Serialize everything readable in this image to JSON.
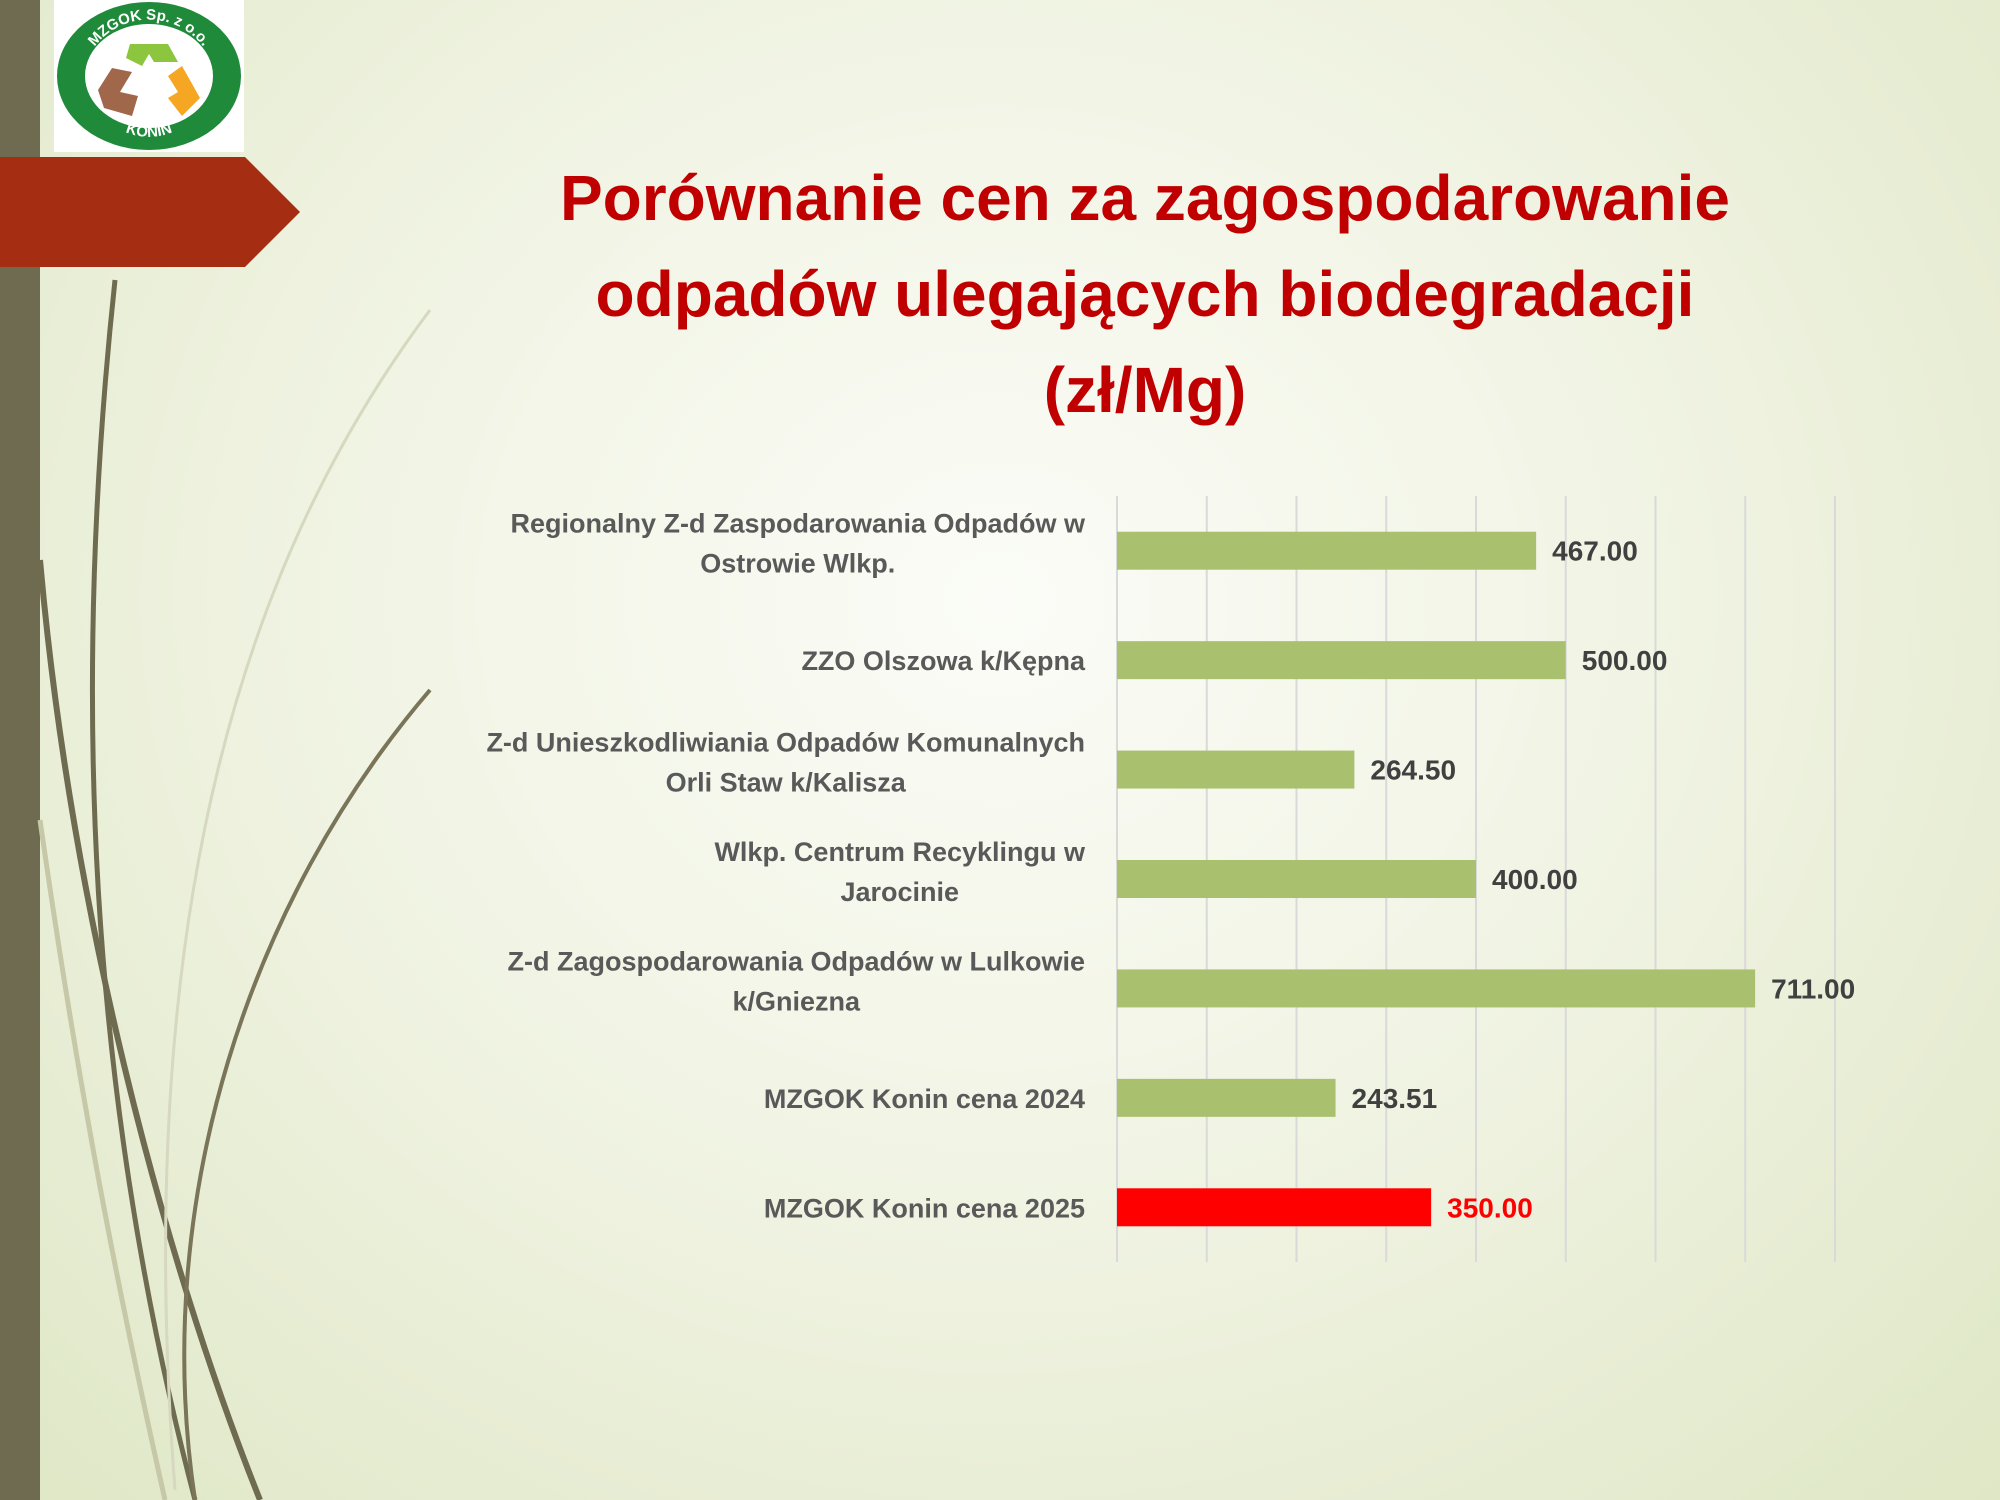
{
  "logo": {
    "top_text": "MZGOK Sp. z o.o.",
    "bottom_text": "KONIN"
  },
  "title": {
    "line1": "Porównanie cen za zagospodarowanie",
    "line2": "odpadów ulegających biodegradacji",
    "line3": "(zł/Mg)"
  },
  "colors": {
    "bar": "#a9c16f",
    "highlight_bar": "#ff0000",
    "value_text": "#404040",
    "highlight_value_text": "#ff0000",
    "title": "#c00000",
    "gridline": "#d9d9d9",
    "left_bar": "#6f6b50",
    "arrow": "#a52d12"
  },
  "chart_data": {
    "type": "bar",
    "orientation": "horizontal",
    "categories": [
      [
        "Regionalny Z-d Zaspodarowania Odpadów w",
        "Ostrowie Wlkp."
      ],
      [
        "ZZO Olszowa k/Kępna"
      ],
      [
        "Z-d Unieszkodliwiania Odpadów Komunalnych",
        "Orli Staw k/Kalisza"
      ],
      [
        "Wlkp. Centrum Recyklingu                     w",
        "Jarocinie"
      ],
      [
        "Z-d Zagospodarowania Odpadów w Lulkowie",
        "k/Gniezna"
      ],
      [
        "MZGOK Konin cena 2024"
      ],
      [
        "MZGOK Konin cena 2025"
      ]
    ],
    "values": [
      467.0,
      500.0,
      264.5,
      400.0,
      711.0,
      243.51,
      350.0
    ],
    "value_labels": [
      "467.00",
      "500.00",
      "264.50",
      "400.00",
      "711.00",
      "243.51",
      "350.00"
    ],
    "highlight_index": 6,
    "xlim": [
      0,
      800
    ],
    "grid": true,
    "title": "",
    "xlabel": "",
    "ylabel": ""
  }
}
